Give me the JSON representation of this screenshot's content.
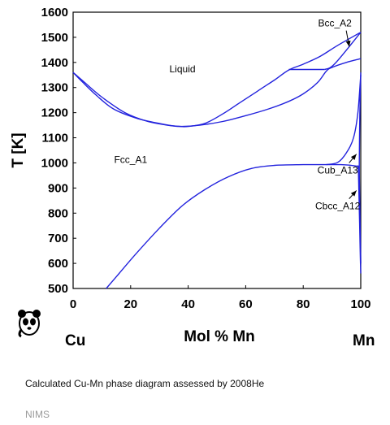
{
  "caption": "Calculated Cu-Mn phase diagram assessed by 2008He",
  "source_label": "NIMS",
  "logo_icon": "panda-logo-icon",
  "chart_data": {
    "type": "line",
    "title": "",
    "xlabel": "Mol % Mn",
    "ylabel": "T [K]",
    "xlim": [
      0,
      100
    ],
    "ylim": [
      500,
      1600
    ],
    "xticks": [
      0,
      20,
      40,
      60,
      80,
      100
    ],
    "yticks": [
      500,
      600,
      700,
      800,
      900,
      1000,
      1100,
      1200,
      1300,
      1400,
      1500,
      1600
    ],
    "grid": false,
    "line_color": "#2222dd",
    "element_labels": {
      "left": "Cu",
      "right": "Mn"
    },
    "regions": [
      {
        "label": "Liquid",
        "x": 38,
        "y": 1360
      },
      {
        "label": "Fcc_A1",
        "x": 20,
        "y": 1000
      }
    ],
    "annotations": [
      {
        "label": "Bcc_A2",
        "text_x": 91,
        "text_y": 1543,
        "arrow_to": [
          96,
          1463
        ]
      },
      {
        "label": "Cub_A13",
        "text_x": 92,
        "text_y": 958,
        "arrow_to": [
          98.5,
          1035
        ]
      },
      {
        "label": "Cbcc_A12",
        "text_x": 92,
        "text_y": 815,
        "arrow_to": [
          98.5,
          890
        ]
      }
    ],
    "series": [
      {
        "points": [
          [
            0,
            1360
          ],
          [
            4,
            1320
          ],
          [
            10,
            1262
          ],
          [
            18,
            1200
          ],
          [
            26,
            1165
          ],
          [
            34,
            1148
          ],
          [
            38,
            1145
          ],
          [
            44,
            1150
          ],
          [
            52,
            1165
          ],
          [
            60,
            1188
          ],
          [
            68,
            1215
          ],
          [
            75,
            1245
          ],
          [
            80,
            1275
          ],
          [
            85,
            1320
          ],
          [
            88,
            1365
          ],
          [
            90,
            1380
          ],
          [
            95,
            1400
          ],
          [
            100,
            1415
          ]
        ]
      },
      {
        "points": [
          [
            0,
            1360
          ],
          [
            3,
            1325
          ],
          [
            8,
            1270
          ],
          [
            14,
            1215
          ],
          [
            22,
            1178
          ],
          [
            30,
            1157
          ],
          [
            36,
            1146
          ],
          [
            40,
            1145
          ],
          [
            46,
            1158
          ],
          [
            52,
            1195
          ],
          [
            58,
            1240
          ],
          [
            64,
            1285
          ],
          [
            70,
            1330
          ],
          [
            75,
            1370
          ],
          [
            80,
            1393
          ],
          [
            86,
            1425
          ],
          [
            92,
            1468
          ],
          [
            100,
            1520
          ]
        ]
      },
      {
        "points": [
          [
            75,
            1372
          ],
          [
            87.5,
            1372
          ]
        ]
      },
      {
        "points": [
          [
            87.5,
            1372
          ],
          [
            91,
            1395
          ],
          [
            100,
            1520
          ]
        ]
      },
      {
        "points": [
          [
            11.5,
            500
          ],
          [
            16,
            560
          ],
          [
            22,
            640
          ],
          [
            30,
            740
          ],
          [
            38,
            830
          ],
          [
            46,
            895
          ],
          [
            54,
            945
          ],
          [
            62,
            978
          ],
          [
            70,
            990
          ],
          [
            80,
            993
          ],
          [
            88,
            993
          ],
          [
            93,
            993
          ],
          [
            96,
            991
          ],
          [
            99,
            986
          ],
          [
            99.5,
            980
          ]
        ]
      },
      {
        "points": [
          [
            88,
            993
          ],
          [
            92,
            1002
          ],
          [
            95,
            1040
          ],
          [
            97.5,
            1100
          ],
          [
            99,
            1200
          ],
          [
            100,
            1350
          ]
        ]
      },
      {
        "points": [
          [
            99,
            990
          ],
          [
            99.2,
            960
          ],
          [
            99.4,
            860
          ],
          [
            99.6,
            760
          ],
          [
            99.8,
            650
          ],
          [
            100,
            560
          ]
        ]
      },
      {
        "points": [
          [
            100,
            1360
          ],
          [
            99.7,
            1200
          ],
          [
            99.5,
            1000
          ],
          [
            99.6,
            880
          ],
          [
            99.8,
            740
          ],
          [
            100,
            600
          ]
        ]
      }
    ]
  }
}
